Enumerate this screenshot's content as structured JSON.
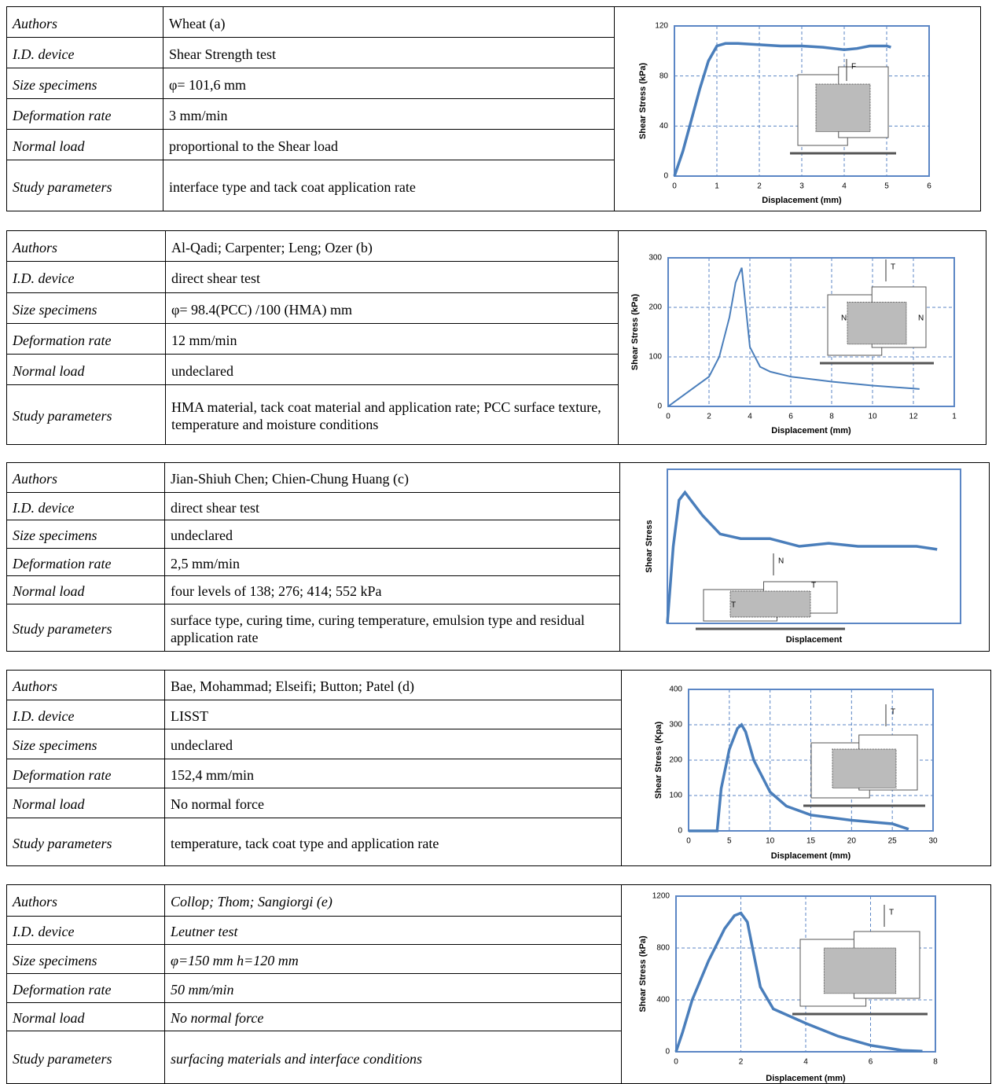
{
  "blocks": [
    {
      "rows": [
        [
          "Authors",
          "Wheat (a)"
        ],
        [
          "I.D. device",
          "Shear Strength test"
        ],
        [
          "Size specimens",
          "φ= 101,6 mm"
        ],
        [
          "Deformation rate",
          "3 mm/min"
        ],
        [
          "Normal load",
          "proportional to the Shear load"
        ],
        [
          "Study parameters",
          "interface type and tack coat application rate"
        ]
      ],
      "chart_data": {
        "type": "line",
        "y_label": "Shear Stress (kPa)",
        "x_label": "Displacement (mm)",
        "color": "#4a7ebb",
        "grid": true,
        "xlim": [
          0,
          6
        ],
        "xticks": [
          0,
          1,
          2,
          3,
          4,
          5,
          6
        ],
        "ylim": [
          0,
          120
        ],
        "yticks": [
          0,
          40,
          80,
          120
        ],
        "x": [
          0,
          0.2,
          0.4,
          0.6,
          0.8,
          1,
          1.2,
          1.5,
          2,
          2.5,
          3,
          3.5,
          4,
          4.3,
          4.6,
          5,
          5.1
        ],
        "values": [
          0,
          20,
          45,
          70,
          92,
          104,
          106,
          106,
          105,
          104,
          104,
          103,
          101,
          102,
          104,
          104,
          103
        ],
        "diagram_labels": [
          "F"
        ]
      }
    },
    {
      "rows": [
        [
          "Authors",
          "Al-Qadi; Carpenter; Leng; Ozer (b)"
        ],
        [
          "I.D. device",
          "direct shear test"
        ],
        [
          "Size specimens",
          "φ= 98.4(PCC) /100 (HMA) mm"
        ],
        [
          "Deformation rate",
          "12 mm/min"
        ],
        [
          "Normal load",
          "undeclared"
        ],
        [
          "Study parameters",
          "HMA material, tack coat material and application rate; PCC surface texture, temperature and moisture conditions"
        ]
      ],
      "chart_data": {
        "type": "line",
        "y_label": "Shear Stress (kPa)",
        "x_label": "Displacement (mm)",
        "color": "#4a7ebb",
        "grid": true,
        "xlim": [
          0,
          14
        ],
        "xticks": [
          0,
          2,
          4,
          6,
          8,
          10,
          12,
          {
            "value": 14,
            "label": "1"
          }
        ],
        "ylim": [
          0,
          300
        ],
        "yticks": [
          0,
          100,
          200,
          300
        ],
        "x": [
          0,
          1,
          2,
          2.5,
          3,
          3.3,
          3.6,
          3.8,
          4,
          4.5,
          5,
          6,
          8,
          10,
          12,
          12.3
        ],
        "values": [
          0,
          30,
          60,
          100,
          180,
          250,
          280,
          200,
          120,
          80,
          70,
          60,
          50,
          42,
          36,
          35
        ],
        "diagram_labels": [
          "T",
          "N",
          "N"
        ]
      }
    },
    {
      "rows": [
        [
          "Authors",
          "Jian-Shiuh Chen; Chien-Chung Huang (c)"
        ],
        [
          "I.D. device",
          "direct shear test"
        ],
        [
          "Size specimens",
          "undeclared"
        ],
        [
          "Deformation rate",
          "2,5 mm/min"
        ],
        [
          "Normal load",
          "four levels of 138; 276; 414; 552 kPa"
        ],
        [
          "Study parameters",
          "surface type, curing time, curing temperature, emulsion type and residual application rate"
        ]
      ],
      "chart_data": {
        "type": "line",
        "y_label": "Shear Stress",
        "x_label": "Displacement",
        "color": "#4a7ebb",
        "grid": false,
        "xlim": [
          0,
          1
        ],
        "ylim": [
          0,
          1
        ],
        "x": [
          0,
          0.02,
          0.04,
          0.06,
          0.08,
          0.12,
          0.18,
          0.25,
          0.35,
          0.45,
          0.55,
          0.65,
          0.75,
          0.85,
          0.92
        ],
        "values": [
          0,
          0.5,
          0.8,
          0.85,
          0.8,
          0.7,
          0.58,
          0.55,
          0.55,
          0.5,
          0.52,
          0.5,
          0.5,
          0.5,
          0.48
        ],
        "diagram_labels": [
          "N",
          "T",
          "T"
        ]
      }
    },
    {
      "rows": [
        [
          "Authors",
          "Bae, Mohammad; Elseifi; Button; Patel (d)"
        ],
        [
          "I.D. device",
          "LISST"
        ],
        [
          "Size specimens",
          "undeclared"
        ],
        [
          "Deformation rate",
          "152,4 mm/min"
        ],
        [
          "Normal load",
          "No normal force"
        ],
        [
          "Study parameters",
          "temperature, tack coat type and application rate"
        ]
      ],
      "chart_data": {
        "type": "line",
        "y_label": "Shear Stress (Kpa)",
        "x_label": "Displacement (mm)",
        "color": "#4a7ebb",
        "grid": true,
        "xlim": [
          0,
          30
        ],
        "xticks": [
          0,
          5,
          10,
          15,
          20,
          25,
          30
        ],
        "ylim": [
          0,
          400
        ],
        "yticks": [
          0,
          100,
          200,
          300,
          400
        ],
        "x": [
          0,
          3.5,
          4,
          5,
          6,
          6.5,
          7,
          8,
          10,
          12,
          15,
          20,
          25,
          27
        ],
        "values": [
          0,
          0,
          120,
          230,
          290,
          300,
          280,
          200,
          110,
          70,
          45,
          30,
          20,
          5
        ],
        "diagram_labels": [
          "T"
        ]
      }
    },
    {
      "rows": [
        [
          "Authors",
          "Collop; Thom; Sangiorgi (e)"
        ],
        [
          "I.D. device",
          "Leutner test"
        ],
        [
          "Size specimens",
          "φ=150 mm h=120 mm"
        ],
        [
          "Deformation rate",
          "50 mm/min"
        ],
        [
          "Normal load",
          "No normal force"
        ],
        [
          "Study parameters",
          "surfacing materials and interface conditions"
        ]
      ],
      "value_italic": true,
      "chart_data": {
        "type": "line",
        "y_label": "Shear Stress (kPa)",
        "x_label": "Displacement (mm)",
        "color": "#4a7ebb",
        "grid": true,
        "xlim": [
          0,
          8
        ],
        "xticks": [
          0,
          2,
          4,
          6,
          8
        ],
        "ylim": [
          0,
          1200
        ],
        "yticks": [
          0,
          400,
          800,
          1200
        ],
        "x": [
          0,
          0.2,
          0.5,
          1,
          1.5,
          1.8,
          2,
          2.2,
          2.4,
          2.6,
          3,
          4,
          5,
          6,
          7,
          7.6
        ],
        "values": [
          0,
          150,
          400,
          700,
          950,
          1050,
          1070,
          1000,
          750,
          500,
          330,
          220,
          120,
          50,
          10,
          5
        ],
        "diagram_labels": [
          "T"
        ]
      }
    }
  ]
}
